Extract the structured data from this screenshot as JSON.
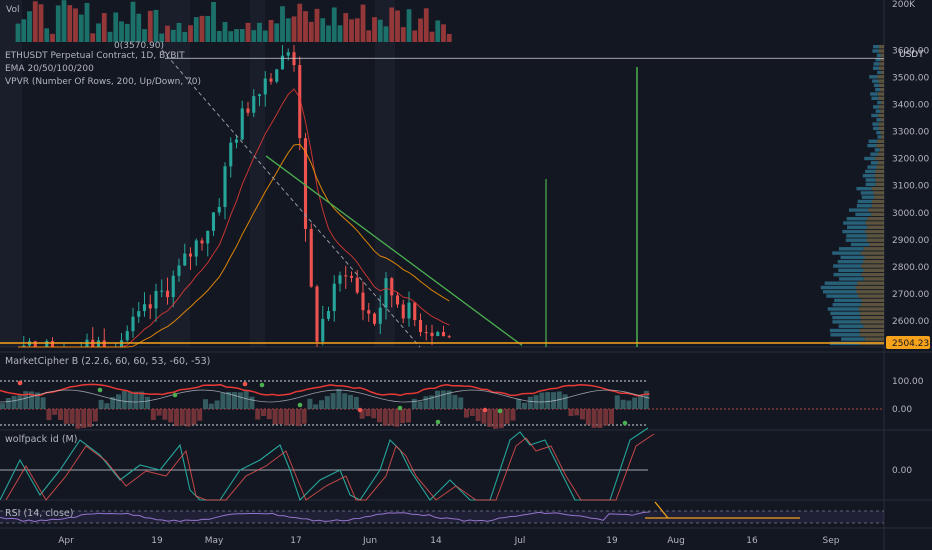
{
  "header": {
    "vol_label": "Vol",
    "vol_axis_label": "200K",
    "symbol": "ETHUSDT Perpetual Contract, 1D, BYBIT",
    "ohlc_marker": "0(3570.90)",
    "ema_label": "EMA 20/50/100/200",
    "vpvr_label": "VPVR (Number Of Rows, 200, Up/Down, 70)",
    "currency": "USDT"
  },
  "price_axis": {
    "ticks": [
      "3600.00",
      "3500.00",
      "3400.00",
      "3300.00",
      "3200.00",
      "3100.00",
      "3000.00",
      "2900.00",
      "2800.00",
      "2700.00",
      "2600.00"
    ],
    "current_price": "2504.23"
  },
  "panes": {
    "marketcipher": {
      "label": "MarketCipher B (2.2.6, 60, 60, 53, -60, -53)",
      "ticks": [
        "100.00",
        "0.00"
      ]
    },
    "wolfpack": {
      "label": "wolfpack id (M)",
      "ticks": [
        "0.00"
      ]
    },
    "rsi": {
      "label": "RSI (14, close)"
    }
  },
  "time_axis": {
    "labels": [
      "Apr",
      "19",
      "May",
      "17",
      "Jun",
      "14",
      "Jul",
      "19",
      "Aug",
      "16",
      "Sep"
    ]
  },
  "colors": {
    "background": "#131722",
    "up": "#26a69a",
    "down": "#ef5350",
    "ema_fast": "#e53935",
    "ema_slow": "#ff9800",
    "trendline": "#4caf50",
    "price_line": "#f7a21b"
  },
  "chart_data": {
    "type": "candlestick",
    "title": "ETHUSDT Perpetual Contract, 1D, BYBIT",
    "ylim": [
      2504,
      3620
    ],
    "y_ticks": [
      2600,
      2700,
      2800,
      2900,
      3000,
      3100,
      3200,
      3300,
      3400,
      3500,
      3600
    ],
    "current_price": 2504.23,
    "resistance_level": 3570.9,
    "x_labels": [
      "Apr",
      "19",
      "May",
      "17",
      "Jun",
      "14",
      "Jul",
      "19",
      "Aug",
      "16",
      "Sep"
    ],
    "close_path": [
      [
        0,
        2490
      ],
      [
        10,
        2500
      ],
      [
        15,
        2520
      ],
      [
        18,
        2540
      ],
      [
        20,
        2580
      ],
      [
        22,
        2620
      ],
      [
        25,
        2700
      ],
      [
        28,
        2780
      ],
      [
        30,
        2850
      ],
      [
        33,
        2950
      ],
      [
        35,
        3050
      ],
      [
        37,
        3250
      ],
      [
        40,
        3400
      ],
      [
        42,
        3480
      ],
      [
        44,
        3520
      ],
      [
        46,
        3560
      ],
      [
        47,
        3590
      ],
      [
        48,
        3570
      ],
      [
        49,
        3300
      ],
      [
        50,
        2900
      ],
      [
        51,
        2700
      ],
      [
        52,
        2550
      ],
      [
        53,
        2600
      ],
      [
        55,
        2700
      ],
      [
        57,
        2800
      ],
      [
        58,
        2750
      ],
      [
        60,
        2650
      ],
      [
        62,
        2600
      ],
      [
        64,
        2720
      ],
      [
        65,
        2700
      ],
      [
        67,
        2650
      ],
      [
        69,
        2600
      ],
      [
        71,
        2580
      ],
      [
        73,
        2560
      ],
      [
        75,
        2530
      ]
    ],
    "trendline": [
      [
        40,
        3210
      ],
      [
        88,
        2510
      ]
    ],
    "series": [
      {
        "name": "EMA 20",
        "color": "#e53935"
      },
      {
        "name": "EMA 50",
        "color": "#ff9800"
      }
    ]
  }
}
